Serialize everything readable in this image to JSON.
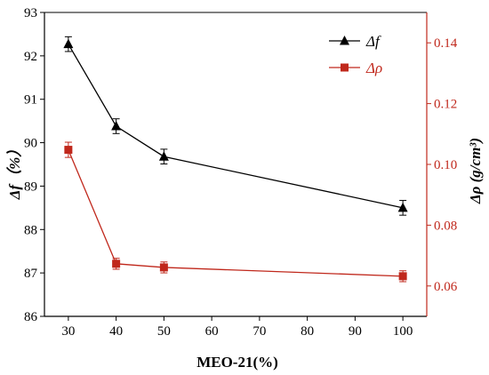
{
  "chart_data": {
    "type": "line",
    "x": [
      30,
      40,
      50,
      100
    ],
    "xlabel": "MEO-21(%)",
    "xlim": [
      25,
      105
    ],
    "xticks": [
      30,
      40,
      50,
      60,
      70,
      80,
      90,
      100
    ],
    "ylabel_left": "Δf（%）",
    "ylim_left": [
      86,
      93
    ],
    "yticks_left": [
      86,
      87,
      88,
      89,
      90,
      91,
      92,
      93
    ],
    "ylabel_right": "Δρ (g/cm³)",
    "ylim_right": [
      0.05,
      0.15
    ],
    "yticks_right": [
      "0.06",
      "0.08",
      "0.10",
      "0.12",
      "0.14"
    ],
    "grid": false,
    "legend_position": "top-right",
    "series": [
      {
        "name": "Δf",
        "axis": "left",
        "marker": "triangle",
        "color": "#000000",
        "values": [
          92.27,
          90.38,
          89.68,
          88.5
        ],
        "errors": [
          0.17,
          0.17,
          0.17,
          0.17
        ]
      },
      {
        "name": "Δρ",
        "axis": "right",
        "marker": "square",
        "color": "#c0281c",
        "values": [
          0.1048,
          0.0673,
          0.0661,
          0.0632
        ],
        "errors": [
          0.0025,
          0.0018,
          0.0018,
          0.0018
        ]
      }
    ],
    "right_axis_color": "#c0281c"
  }
}
